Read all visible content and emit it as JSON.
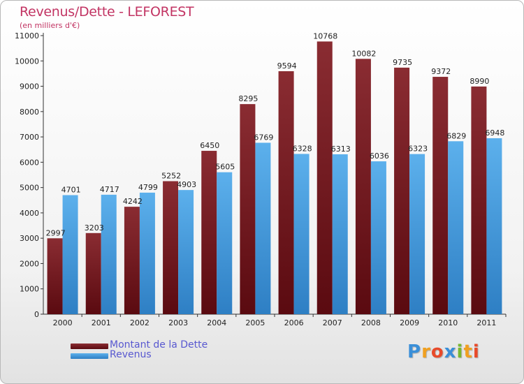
{
  "header": {
    "title": "Revenus/Dette - LEFOREST",
    "subtitle": "(en milliers d'€)"
  },
  "logo": {
    "letters": [
      {
        "char": "P",
        "color": "#3a8fd8"
      },
      {
        "char": "r",
        "color": "#f0a020"
      },
      {
        "char": "o",
        "color": "#e84a2a"
      },
      {
        "char": "x",
        "color": "#3a8fd8"
      },
      {
        "char": "i",
        "color": "#78b830"
      },
      {
        "char": "t",
        "color": "#f0a020"
      },
      {
        "char": "i",
        "color": "#e84a2a"
      }
    ]
  },
  "colors": {
    "dette": "#7a2228",
    "revenus": "#4aa0e0",
    "axis_text": "#222222"
  },
  "chart_data": {
    "type": "bar",
    "categories": [
      "2000",
      "2001",
      "2002",
      "2003",
      "2004",
      "2005",
      "2006",
      "2007",
      "2008",
      "2009",
      "2010",
      "2011"
    ],
    "series": [
      {
        "name": "Montant de la Dette",
        "values": [
          2997,
          3203,
          4242,
          5252,
          6450,
          8295,
          9594,
          10768,
          10082,
          9735,
          9372,
          8990
        ]
      },
      {
        "name": "Revenus",
        "values": [
          4701,
          4717,
          4799,
          4903,
          5605,
          6769,
          6328,
          6313,
          6036,
          6323,
          6829,
          6948
        ]
      }
    ],
    "y_ticks": [
      0,
      1000,
      2000,
      3000,
      4000,
      5000,
      6000,
      7000,
      8000,
      9000,
      10000,
      11000
    ],
    "ylim": [
      0,
      11000
    ],
    "title": "Revenus/Dette - LEFOREST",
    "xlabel": "",
    "ylabel": "",
    "grid": false,
    "legend_position": "bottom-left"
  }
}
